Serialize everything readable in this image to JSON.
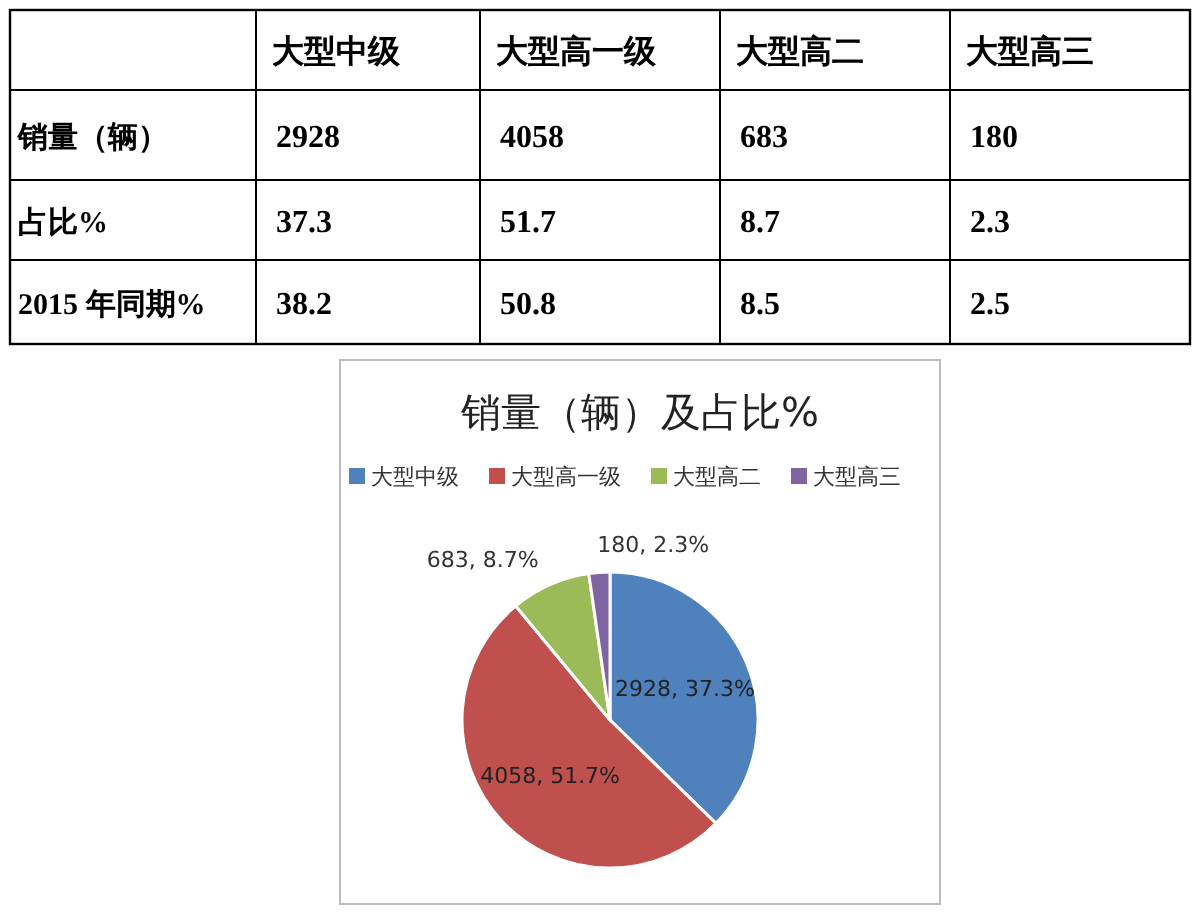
{
  "chart_data": [
    {
      "type": "heatmap",
      "categories": [
        "大型中级",
        "大型高一级",
        "大型高二",
        "大型高三"
      ],
      "y_categories": [
        "销量（辆）",
        "占比%",
        "2015 年同期%"
      ],
      "cells": [
        [
          2928,
          4058,
          683,
          180
        ],
        [
          37.3,
          51.7,
          8.7,
          2.3
        ],
        [
          38.2,
          50.8,
          8.5,
          2.5
        ]
      ],
      "data_labels": true
    },
    {
      "type": "pie",
      "title": "销量（辆）及占比%",
      "categories": [
        "大型中级",
        "大型高一级",
        "大型高二",
        "大型高三"
      ],
      "values": [
        2928,
        4058,
        683,
        180
      ],
      "colors": [
        "#4f81bd",
        "#c0504d",
        "#9bbb59",
        "#8064a2"
      ],
      "value_labels": [
        "2928, 37.3%",
        "4058, 51.7%",
        "683, 8.7%",
        "180, 2.3%"
      ],
      "legend": "top"
    }
  ]
}
